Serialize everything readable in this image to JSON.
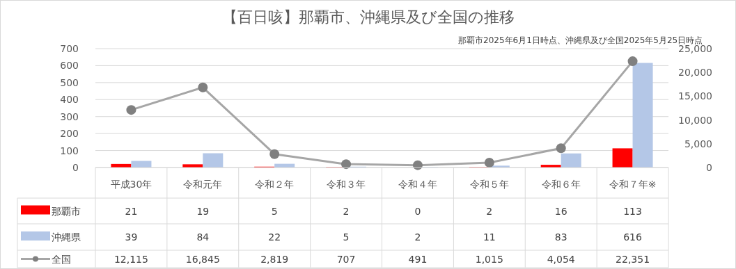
{
  "chart_data": {
    "type": "bar",
    "title": "【百日咳】那覇市、沖縄県及び全国の推移",
    "subtitle": "那覇市2025年6月1日時点、沖縄県及び全国2025年5月25日時点",
    "categories": [
      "平成30年",
      "令和元年",
      "令和２年",
      "令和３年",
      "令和４年",
      "令和５年",
      "令和６年",
      "令和７年※"
    ],
    "series": [
      {
        "name": "那覇市",
        "color": "#ff0000",
        "values": [
          21,
          19,
          5,
          2,
          0,
          2,
          16,
          113
        ],
        "value_labels": [
          "21",
          "19",
          "5",
          "2",
          "0",
          "2",
          "16",
          "113"
        ]
      },
      {
        "name": "沖縄県",
        "color": "#b4c7e7",
        "values": [
          39,
          84,
          22,
          5,
          2,
          11,
          83,
          616
        ],
        "value_labels": [
          "39",
          "84",
          "22",
          "5",
          "2",
          "11",
          "83",
          "616"
        ]
      },
      {
        "name": "全国",
        "type": "line",
        "axis": "y2",
        "color": "#a6a6a6",
        "marker": "circle",
        "values": [
          12115,
          16845,
          2819,
          707,
          491,
          1015,
          4054,
          22351
        ],
        "value_labels": [
          "12,115",
          "16,845",
          "2,819",
          "707",
          "491",
          "1,015",
          "4,054",
          "22,351"
        ]
      }
    ],
    "ylim": [
      0,
      700
    ],
    "yticks": [
      0,
      100,
      200,
      300,
      400,
      500,
      600,
      700
    ],
    "y2lim": [
      0,
      25000
    ],
    "y2ticks": [
      {
        "value": 0,
        "label": "0"
      },
      {
        "value": 5000,
        "label": "5,000"
      },
      {
        "value": 10000,
        "label": "10,000"
      },
      {
        "value": 15000,
        "label": "15,000"
      },
      {
        "value": 20000,
        "label": "20,000"
      },
      {
        "value": 25000,
        "label": "25,000"
      }
    ],
    "grid": "y",
    "legend": "bottom left"
  }
}
